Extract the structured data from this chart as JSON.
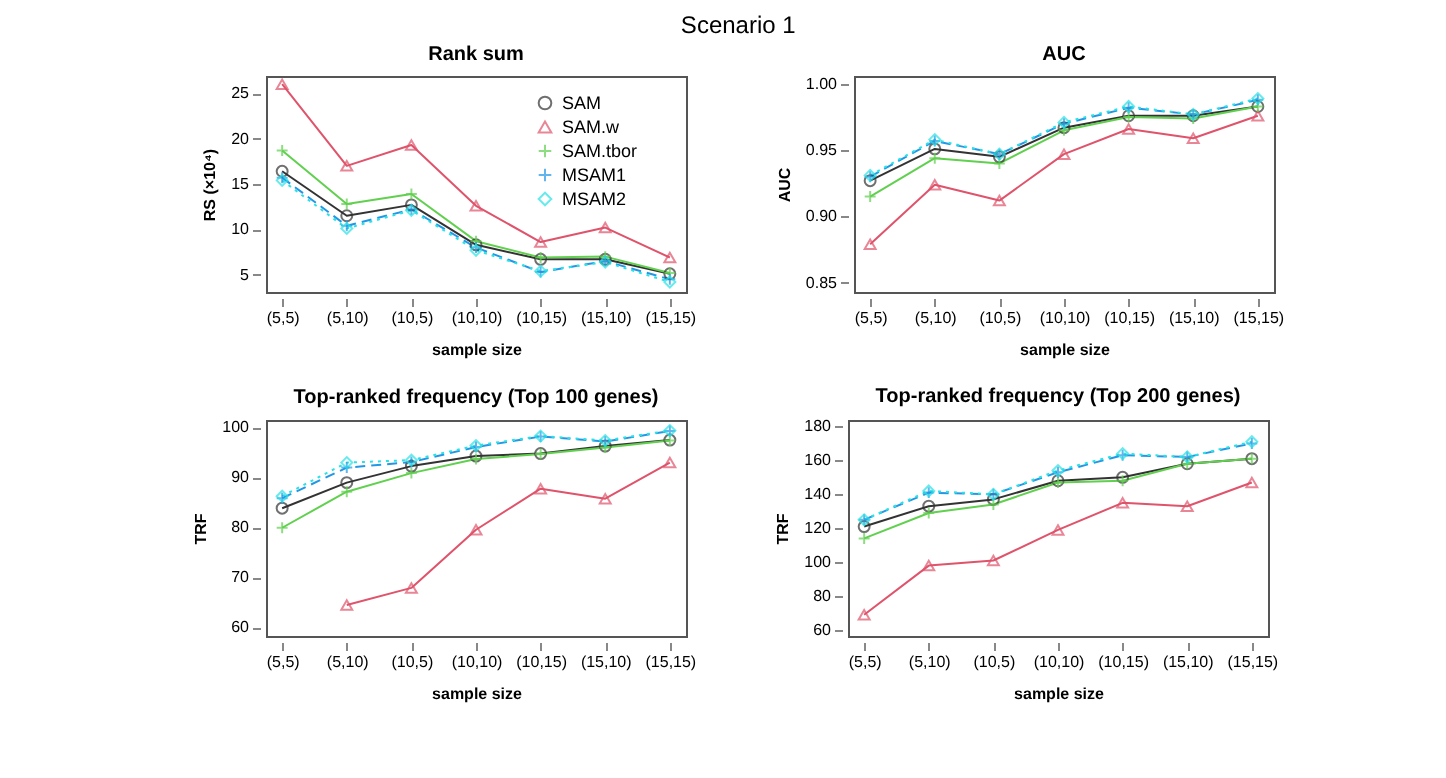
{
  "chart_data": [
    {
      "type": "line",
      "title": "Rank sum",
      "annotations": [
        "Scenario 1"
      ],
      "xlabel": "sample size",
      "ylabel": "RS (×10⁴)",
      "categories": [
        "(5,5)",
        "(5,10)",
        "(10,5)",
        "(10,10)",
        "(10,15)",
        "(15,10)",
        "(15,15)"
      ],
      "ylim": [
        3.1,
        26.9
      ],
      "yticks": [
        5,
        10,
        15,
        20,
        25
      ],
      "legend": "top right",
      "series": [
        {
          "name": "SAM",
          "color": "#333333",
          "marker": "circle",
          "line_style": "solid",
          "values": [
            16.4,
            11.5,
            12.7,
            8.3,
            6.7,
            6.7,
            5.1
          ]
        },
        {
          "name": "SAM.w",
          "color": "#df536b",
          "marker": "triangle",
          "line_style": "solid",
          "values": [
            26.0,
            17.0,
            19.3,
            12.6,
            8.6,
            10.2,
            6.9
          ]
        },
        {
          "name": "SAM.tbor",
          "color": "#61d04f",
          "marker": "cross",
          "line_style": "solid",
          "values": [
            18.7,
            12.8,
            13.9,
            8.7,
            6.9,
            7.0,
            5.2
          ]
        },
        {
          "name": "MSAM1",
          "color": "#2297e6",
          "marker": "cross",
          "line_style": "dashed",
          "values": [
            15.7,
            10.4,
            12.2,
            8.0,
            5.3,
            6.5,
            4.5
          ]
        },
        {
          "name": "MSAM2",
          "color": "#28e2e5",
          "marker": "diamond",
          "line_style": "dotted",
          "values": [
            15.4,
            10.1,
            12.1,
            7.7,
            5.4,
            6.4,
            4.2
          ]
        }
      ]
    },
    {
      "type": "line",
      "title": "AUC",
      "xlabel": "sample size",
      "ylabel": "AUC",
      "categories": [
        "(5,5)",
        "(5,10)",
        "(10,5)",
        "(10,10)",
        "(10,15)",
        "(15,10)",
        "(15,15)"
      ],
      "ylim": [
        0.843,
        1.006
      ],
      "yticks": [
        {
          "value": 0.85,
          "label": "0.85"
        },
        {
          "value": 0.9,
          "label": "0.90"
        },
        {
          "value": 0.95,
          "label": "0.95"
        },
        {
          "value": 1.0,
          "label": "1.00"
        }
      ],
      "series": [
        {
          "color": "#333333",
          "marker": "circle",
          "line_style": "solid",
          "values": [
            0.927,
            0.951,
            0.945,
            0.967,
            0.976,
            0.976,
            0.983
          ]
        },
        {
          "color": "#df536b",
          "marker": "triangle",
          "line_style": "solid",
          "values": [
            0.879,
            0.924,
            0.912,
            0.947,
            0.966,
            0.959,
            0.976
          ]
        },
        {
          "color": "#61d04f",
          "marker": "cross",
          "line_style": "solid",
          "values": [
            0.915,
            0.944,
            0.94,
            0.965,
            0.975,
            0.974,
            0.983
          ]
        },
        {
          "color": "#2297e6",
          "marker": "cross",
          "line_style": "dashed",
          "values": [
            0.93,
            0.957,
            0.947,
            0.97,
            0.982,
            0.977,
            0.988
          ]
        },
        {
          "color": "#28e2e5",
          "marker": "diamond",
          "line_style": "dotted",
          "values": [
            0.931,
            0.958,
            0.947,
            0.971,
            0.983,
            0.977,
            0.989
          ]
        }
      ]
    },
    {
      "type": "line",
      "title": "Top-ranked frequency (Top 100 genes)",
      "xlabel": "sample size",
      "ylabel": "TRF",
      "categories": [
        "(5,5)",
        "(5,10)",
        "(10,5)",
        "(10,10)",
        "(10,15)",
        "(15,10)",
        "(15,15)"
      ],
      "ylim": [
        58.3,
        101.4
      ],
      "yticks": [
        60,
        70,
        80,
        90,
        100
      ],
      "series": [
        {
          "color": "#333333",
          "marker": "circle",
          "line_style": "solid",
          "values": [
            83.8,
            88.9,
            92.2,
            94.2,
            94.7,
            96.2,
            97.4
          ]
        },
        {
          "color": "#df536b",
          "marker": "triangle",
          "line_style": "solid",
          "values": [
            null,
            64.5,
            67.9,
            79.5,
            87.7,
            85.7,
            92.9
          ]
        },
        {
          "color": "#61d04f",
          "marker": "cross",
          "line_style": "solid",
          "values": [
            79.9,
            87.1,
            90.8,
            93.6,
            94.6,
            95.9,
            97.3
          ]
        },
        {
          "color": "#2297e6",
          "marker": "cross",
          "line_style": "dashed",
          "values": [
            85.8,
            91.9,
            93.0,
            96.0,
            98.1,
            97.1,
            99.2
          ]
        },
        {
          "color": "#28e2e5",
          "marker": "diamond",
          "line_style": "dotted",
          "values": [
            86.2,
            92.9,
            93.4,
            96.3,
            98.2,
            97.3,
            99.3
          ]
        }
      ]
    },
    {
      "type": "line",
      "title": "Top-ranked frequency (Top 200 genes)",
      "xlabel": "sample size",
      "ylabel": "TRF",
      "categories": [
        "(5,5)",
        "(5,10)",
        "(10,5)",
        "(10,10)",
        "(10,15)",
        "(15,10)",
        "(15,15)"
      ],
      "ylim": [
        56.5,
        183.8
      ],
      "yticks": [
        60,
        80,
        100,
        120,
        140,
        160,
        180
      ],
      "series": [
        {
          "color": "#333333",
          "marker": "circle",
          "line_style": "solid",
          "values": [
            121,
            133,
            137,
            148,
            150,
            158,
            161
          ]
        },
        {
          "color": "#df536b",
          "marker": "triangle",
          "line_style": "solid",
          "values": [
            69,
            98,
            101,
            119,
            135,
            133,
            147
          ]
        },
        {
          "color": "#61d04f",
          "marker": "cross",
          "line_style": "solid",
          "values": [
            114,
            129,
            134,
            147,
            148,
            158,
            161
          ]
        },
        {
          "color": "#2297e6",
          "marker": "cross",
          "line_style": "dashed",
          "values": [
            125,
            141,
            140,
            153,
            163,
            162,
            170
          ]
        },
        {
          "color": "#28e2e5",
          "marker": "diamond",
          "line_style": "dotted",
          "values": [
            125,
            142,
            140,
            154,
            164,
            162,
            171
          ]
        }
      ]
    }
  ]
}
